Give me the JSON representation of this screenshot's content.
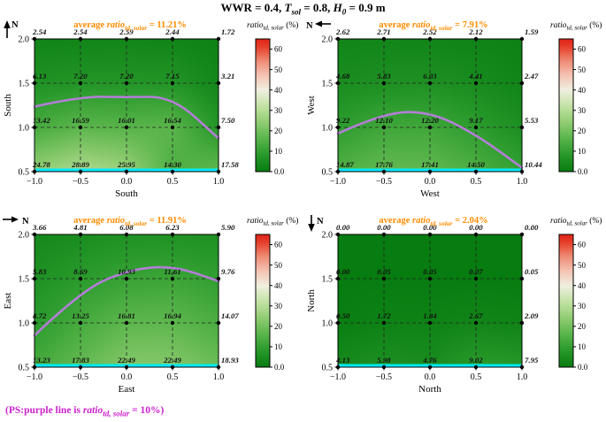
{
  "title": {
    "wwr": "WWR = 0.4, ",
    "t": "T",
    "t_sub": "sol",
    "t_eq": " = 0.8, ",
    "h": "H",
    "h_sub": "0",
    "h_eq": " = 0.9 m"
  },
  "labels": {
    "north": "N",
    "average_prefix": "average ",
    "ratio": "ratio",
    "ratio_sub": "td, solar"
  },
  "note": {
    "p1": "(PS:purple line is ",
    "p2": " = 10%)"
  },
  "colors": {
    "orange": "#ff8c00",
    "purple": "#bb7ce0",
    "cyan": "#00eaff",
    "magenta": "#cc22cc",
    "label": "#111111"
  },
  "contour": {
    "level": 10
  },
  "axes": {
    "x": [
      -1.0,
      -0.5,
      0.0,
      0.5,
      1.0
    ],
    "y_rows_top_to_bottom": [
      2.0,
      1.5,
      1.0,
      0.5
    ],
    "xtick_labels": [
      "−1.0",
      "−0.5",
      "0.0",
      "0.5",
      "1.0"
    ],
    "ytick_labels_top_to_bottom": [
      "2.0",
      "1.5",
      "1.0",
      "0.5"
    ]
  },
  "colorbar": {
    "title_unit": " (%)",
    "vmax": 65,
    "ticks": [
      {
        "v": 60,
        "label": "60"
      },
      {
        "v": 50,
        "label": "50"
      },
      {
        "v": 40,
        "label": "40"
      },
      {
        "v": 30,
        "label": "30"
      },
      {
        "v": 20,
        "label": "20"
      },
      {
        "v": 10,
        "label": "10"
      },
      {
        "v": 0,
        "label": "0.0"
      }
    ],
    "stops": [
      {
        "v": 0,
        "c": "#077c10"
      },
      {
        "v": 8,
        "c": "#27982a"
      },
      {
        "v": 16,
        "c": "#58b44a"
      },
      {
        "v": 24,
        "c": "#90cc72"
      },
      {
        "v": 32,
        "c": "#c2e2a4"
      },
      {
        "v": 40,
        "c": "#f0efe0"
      },
      {
        "v": 47,
        "c": "#f4c4b4"
      },
      {
        "v": 54,
        "c": "#ef8d77"
      },
      {
        "v": 61,
        "c": "#e6402c"
      },
      {
        "v": 65,
        "c": "#df2317"
      }
    ]
  },
  "chart_data": [
    {
      "type": "heatmap",
      "name": "south",
      "xlabel": "South",
      "ylabel": "South",
      "average_suffix": " = 11.21%",
      "north_arrow": "up",
      "rows": [
        [
          "2.54",
          "2.54",
          "2.59",
          "2.44",
          "1.72"
        ],
        [
          "6.13",
          "7.20",
          "7.20",
          "7.15",
          "3.21"
        ],
        [
          "13.42",
          "16.59",
          "16.01",
          "16.54",
          "7.50"
        ],
        [
          "24.78",
          "28.89",
          "25.95",
          "14.30",
          "17.58"
        ]
      ]
    },
    {
      "type": "heatmap",
      "name": "west",
      "xlabel": "West",
      "ylabel": "West",
      "average_suffix": " = 7.91%",
      "north_arrow": "left",
      "rows": [
        [
          "2.62",
          "2.71",
          "2.52",
          "2.12",
          "1.59"
        ],
        [
          "4.68",
          "5.83",
          "6.03",
          "4.41",
          "2.47"
        ],
        [
          "9.22",
          "12.10",
          "12.20",
          "9.17",
          "5.53"
        ],
        [
          "14.87",
          "17.76",
          "17.41",
          "14.50",
          "10.44"
        ]
      ]
    },
    {
      "type": "heatmap",
      "name": "east",
      "xlabel": "East",
      "ylabel": "East",
      "average_suffix": " = 11.91%",
      "north_arrow": "right",
      "rows": [
        [
          "3.66",
          "4.81",
          "6.08",
          "6.23",
          "5.90"
        ],
        [
          "5.83",
          "8.69",
          "10.93",
          "11.61",
          "9.76"
        ],
        [
          "8.72",
          "13.25",
          "16.81",
          "16.94",
          "14.07"
        ],
        [
          "13.23",
          "17.83",
          "22.49",
          "22.49",
          "18.93"
        ]
      ]
    },
    {
      "type": "heatmap",
      "name": "north",
      "xlabel": "North",
      "ylabel": "North",
      "average_suffix": " = 2.04%",
      "north_arrow": "down",
      "rows": [
        [
          "0.00",
          "0.00",
          "0.00",
          "0.00",
          "0.00"
        ],
        [
          "0.00",
          "0.05",
          "0.05",
          "0.07",
          "0.05"
        ],
        [
          "0.50",
          "1.72",
          "1.84",
          "2.67",
          "2.09"
        ],
        [
          "4.13",
          "5.98",
          "4.76",
          "9.02",
          "7.95"
        ]
      ]
    }
  ]
}
